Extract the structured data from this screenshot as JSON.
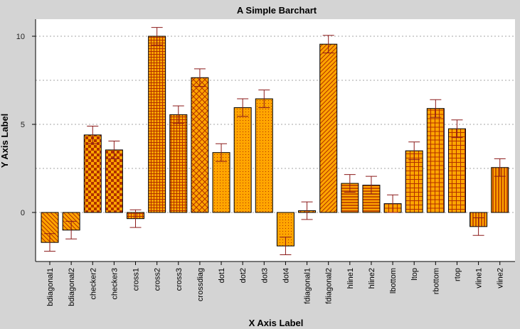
{
  "chart_data": {
    "type": "bar",
    "title": "A Simple Barchart",
    "xlabel": "X Axis Label",
    "ylabel": "Y Axis Label",
    "ylim": [
      -2.8,
      10.4
    ],
    "yticks": [
      0,
      5,
      10
    ],
    "grid": true,
    "categories": [
      "bdiagonal1",
      "bdiagonal2",
      "checker2",
      "checker3",
      "cross1",
      "cross2",
      "cross3",
      "crossdiag",
      "dot1",
      "dot2",
      "dot3",
      "dot4",
      "fdiagonal1",
      "fdiagonal2",
      "hline1",
      "hline2",
      "lbottom",
      "ltop",
      "rbottom",
      "rtop",
      "vline1",
      "vline2"
    ],
    "values": [
      -1.7,
      -1.0,
      4.4,
      3.55,
      -0.35,
      10.0,
      5.55,
      7.65,
      3.4,
      5.95,
      6.45,
      -1.9,
      0.1,
      9.55,
      1.65,
      1.55,
      0.5,
      3.5,
      5.9,
      4.75,
      -0.8,
      2.55
    ],
    "errors": [
      0.5,
      0.5,
      0.5,
      0.5,
      0.5,
      0.5,
      0.5,
      0.5,
      0.5,
      0.5,
      0.5,
      0.5,
      0.5,
      0.5,
      0.5,
      0.5,
      0.5,
      0.5,
      0.5,
      0.5,
      0.5,
      0.5
    ],
    "patterns": [
      "bdiagonal",
      "bdiagonal",
      "checker",
      "checker",
      "cross",
      "cross",
      "cross",
      "crossdiag",
      "dot",
      "dot",
      "dot",
      "dot",
      "fdiagonal",
      "fdiagonal",
      "hline",
      "hline",
      "lbottom",
      "ltop",
      "rbottom",
      "rtop",
      "vline",
      "vline"
    ],
    "colors": {
      "bar_fill": "#ffa500",
      "bar_pattern": "#b03000",
      "bar_outline": "#000000",
      "error_bar": "#8b1a1a",
      "plot_background": "#ffffff",
      "frame": "#d4d4d4"
    }
  }
}
